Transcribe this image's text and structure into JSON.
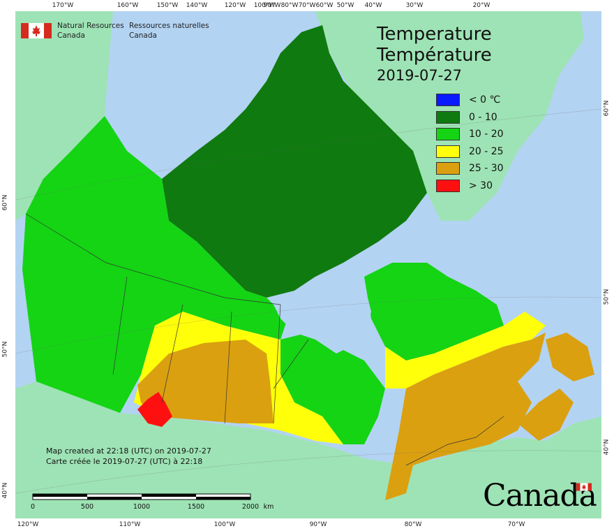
{
  "title": {
    "line1": "Temperature",
    "line2": "Température",
    "date": "2019-07-27"
  },
  "legend": [
    {
      "label": "< 0 ℃",
      "color": "#0a1aff"
    },
    {
      "label": "0 - 10",
      "color": "#0f7a0f"
    },
    {
      "label": "10 - 20",
      "color": "#14d414"
    },
    {
      "label": "20 - 25",
      "color": "#ffff0a"
    },
    {
      "label": "25 - 30",
      "color": "#daa010"
    },
    {
      "label": "> 30",
      "color": "#ff1010"
    }
  ],
  "agency": {
    "en_line1": "Natural Resources",
    "en_line2": "Canada",
    "fr_line1": "Ressources naturelles",
    "fr_line2": "Canada"
  },
  "footer": {
    "created_en": "Map created at 22:18 (UTC) on 2019-07-27",
    "created_fr": "Carte créée le 2019-07-27 (UTC) à 22:18",
    "wordmark": "Canada"
  },
  "scale": {
    "labels": [
      "0",
      "500",
      "1000",
      "1500",
      "2000"
    ],
    "unit": "km"
  },
  "graticule": {
    "top": [
      "170°W",
      "160°W",
      "150°W",
      "140°W",
      "120°W",
      "100°W",
      "90°W",
      "80°W",
      "70°W",
      "60°W",
      "50°W",
      "40°W",
      "30°W",
      "20°W"
    ],
    "bottom": [
      "120°W",
      "110°W",
      "100°W",
      "90°W",
      "80°W",
      "70°W"
    ],
    "left": [
      "60°N",
      "50°N",
      "40°N"
    ],
    "right": [
      "60°N",
      "50°N",
      "40°N"
    ]
  },
  "colors": {
    "water": "#b3d3f2",
    "foreign_land": "#9ee3b5",
    "boundary": "#333333"
  }
}
